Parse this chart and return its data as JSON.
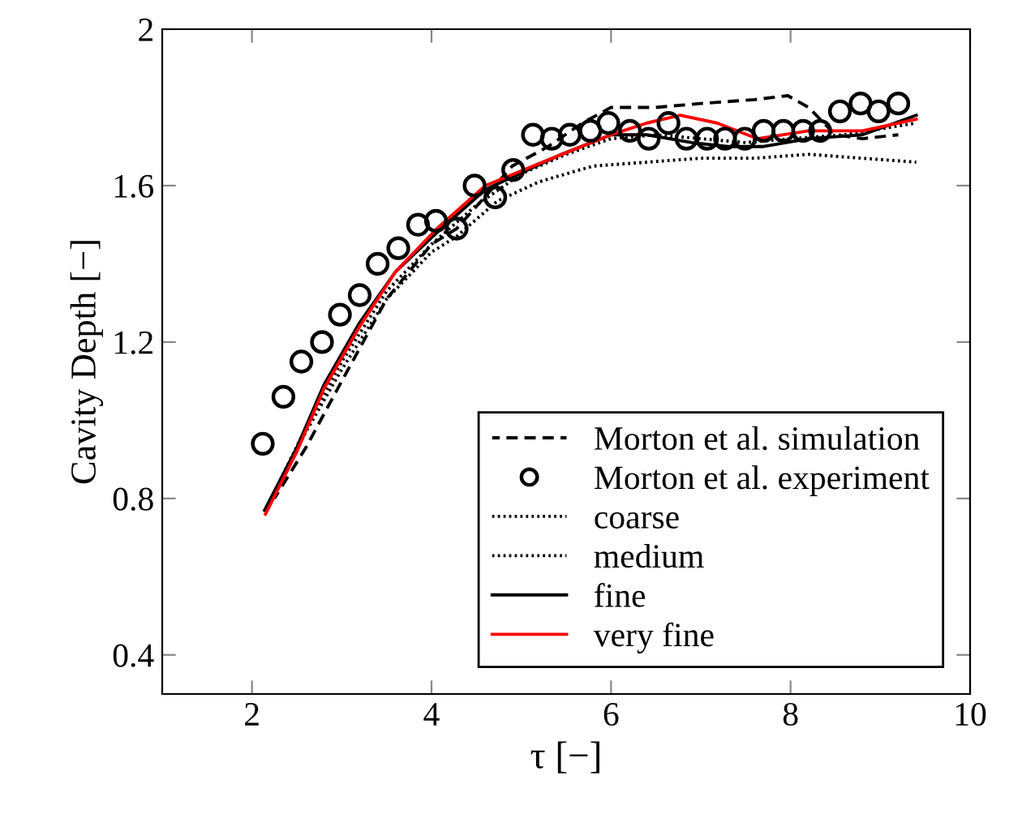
{
  "chart_data": {
    "type": "line",
    "xlabel": "τ [−]",
    "ylabel": "Cavity Depth [−]",
    "xlim": [
      1,
      10
    ],
    "xticks": [
      2,
      4,
      6,
      8,
      10
    ],
    "ylim": [
      0.3,
      2
    ],
    "yticks": [
      0.4,
      0.8,
      1.2,
      1.6,
      2
    ],
    "grid": false,
    "legend": "bottom right",
    "series": [
      {
        "name": "Morton et al. simulation",
        "color": "#000000",
        "line_style": "dashed",
        "marker": "none",
        "x": [
          2.25,
          2.6,
          3.0,
          3.5,
          4.0,
          4.28,
          4.9,
          5.3,
          5.68,
          6.0,
          6.5,
          7.0,
          7.6,
          7.97,
          8.2,
          8.5,
          8.8,
          9.2
        ],
        "values": [
          0.8,
          0.93,
          1.1,
          1.31,
          1.45,
          1.49,
          1.65,
          1.7,
          1.76,
          1.8,
          1.8,
          1.81,
          1.82,
          1.83,
          1.8,
          1.73,
          1.72,
          1.73
        ]
      },
      {
        "name": "Morton et al. experiment",
        "type": "scatter",
        "color": "#000000",
        "marker": "circle",
        "x": [
          2.12,
          2.35,
          2.55,
          2.78,
          2.98,
          3.2,
          3.4,
          3.63,
          3.85,
          4.05,
          4.28,
          4.48,
          4.71,
          4.91,
          5.13,
          5.34,
          5.54,
          5.77,
          5.97,
          6.21,
          6.42,
          6.64,
          6.84,
          7.07,
          7.27,
          7.49,
          7.7,
          7.92,
          8.14,
          8.33,
          8.55,
          8.78,
          8.98,
          9.2
        ],
        "values": [
          0.94,
          1.06,
          1.15,
          1.2,
          1.27,
          1.32,
          1.4,
          1.44,
          1.5,
          1.51,
          1.49,
          1.6,
          1.57,
          1.64,
          1.73,
          1.72,
          1.73,
          1.74,
          1.76,
          1.74,
          1.72,
          1.76,
          1.72,
          1.72,
          1.72,
          1.72,
          1.74,
          1.74,
          1.74,
          1.74,
          1.79,
          1.81,
          1.79,
          1.81
        ]
      },
      {
        "name": "coarse",
        "color": "#000000",
        "line_style": "dotted",
        "marker": "none",
        "x": [
          2.15,
          2.6,
          3.0,
          3.5,
          4.0,
          4.28,
          4.73,
          5.2,
          5.8,
          6.4,
          7.0,
          7.6,
          8.2,
          8.8,
          9.4
        ],
        "values": [
          0.77,
          0.97,
          1.13,
          1.31,
          1.43,
          1.47,
          1.56,
          1.61,
          1.65,
          1.66,
          1.67,
          1.67,
          1.68,
          1.67,
          1.66
        ]
      },
      {
        "name": "medium",
        "color": "#000000",
        "line_style": "dotted",
        "marker": "none",
        "x": [
          2.15,
          2.6,
          3.0,
          3.5,
          4.0,
          4.5,
          5.0,
          5.5,
          6.0,
          6.5,
          7.0,
          7.5,
          8.0,
          8.6,
          9.4
        ],
        "values": [
          0.77,
          0.98,
          1.15,
          1.33,
          1.45,
          1.55,
          1.63,
          1.68,
          1.72,
          1.73,
          1.72,
          1.71,
          1.72,
          1.73,
          1.76
        ]
      },
      {
        "name": "fine",
        "color": "#000000",
        "line_style": "solid",
        "marker": "none",
        "x": [
          2.14,
          2.5,
          2.8,
          3.2,
          3.6,
          4.06,
          4.6,
          5.45,
          6.0,
          6.4,
          6.9,
          7.3,
          7.7,
          8.2,
          8.8,
          9.4
        ],
        "values": [
          0.77,
          0.93,
          1.09,
          1.25,
          1.38,
          1.48,
          1.59,
          1.68,
          1.73,
          1.73,
          1.71,
          1.7,
          1.7,
          1.72,
          1.73,
          1.78
        ]
      },
      {
        "name": "very fine",
        "color": "#ff0000",
        "line_style": "solid",
        "marker": "none",
        "x": [
          2.15,
          2.5,
          2.8,
          3.2,
          3.6,
          4.06,
          4.6,
          5.45,
          6.0,
          6.4,
          6.77,
          7.18,
          7.63,
          8.2,
          8.8,
          9.4
        ],
        "values": [
          0.76,
          0.92,
          1.08,
          1.24,
          1.38,
          1.49,
          1.6,
          1.68,
          1.73,
          1.76,
          1.78,
          1.76,
          1.72,
          1.74,
          1.74,
          1.77
        ]
      }
    ]
  }
}
